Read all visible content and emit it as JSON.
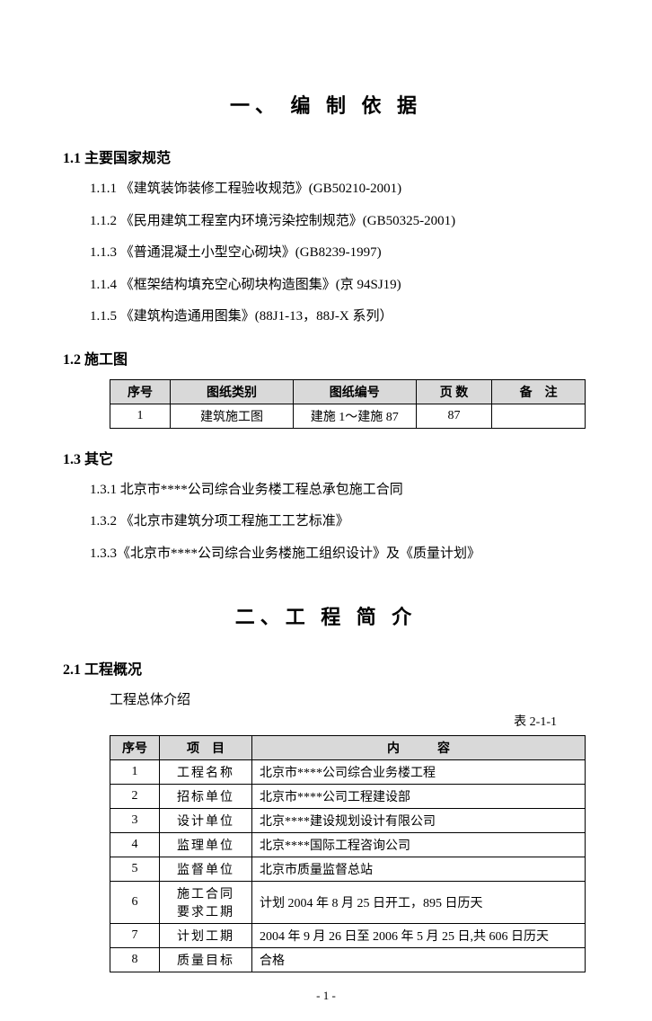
{
  "chapter1_title": "一、 编 制 依 据",
  "s11_title": "1.1 主要国家规范",
  "s11_items": [
    "1.1.1 《建筑装饰装修工程验收规范》(GB50210-2001)",
    "1.1.2 《民用建筑工程室内环境污染控制规范》(GB50325-2001)",
    "1.1.3 《普通混凝土小型空心砌块》(GB8239-1997)",
    "1.1.4 《框架结构填充空心砌块构造图集》(京 94SJ19)",
    "1.1.5 《建筑构造通用图集》(88J1-13，88J-X 系列）"
  ],
  "s12_title": "1.2 施工图",
  "t1_headers": [
    "序号",
    "图纸类别",
    "图纸编号",
    "页 数",
    "备　注"
  ],
  "t1_row": [
    "1",
    "建筑施工图",
    "建施 1～建施 87",
    "87",
    ""
  ],
  "s13_title": "1.3 其它",
  "s13_items": [
    "1.3.1  北京市****公司综合业务楼工程总承包施工合同",
    "1.3.2 《北京市建筑分项工程施工工艺标准》",
    "1.3.3《北京市****公司综合业务楼施工组织设计》及《质量计划》"
  ],
  "chapter2_title": "二、工 程 简 介",
  "s21_title": "2.1 工程概况",
  "s21_intro": "工程总体介绍",
  "t2_label": "表 2-1-1",
  "t2_headers": [
    "序号",
    "项　目",
    "内　　　容"
  ],
  "t2_rows": [
    [
      "1",
      "工程名称",
      "北京市****公司综合业务楼工程"
    ],
    [
      "2",
      "招标单位",
      "北京市****公司工程建设部"
    ],
    [
      "3",
      "设计单位",
      "北京****建设规划设计有限公司"
    ],
    [
      "4",
      "监理单位",
      "北京****国际工程咨询公司"
    ],
    [
      "5",
      "监督单位",
      "北京市质量监督总站"
    ],
    [
      "6",
      "施工合同\n要求工期",
      "计划 2004 年 8 月 25 日开工，895 日历天"
    ],
    [
      "7",
      "计划工期",
      "2004 年 9 月 26 日至 2006 年 5 月 25 日,共 606 日历天"
    ],
    [
      "8",
      "质量目标",
      "合格"
    ]
  ],
  "page_num": "- 1 -"
}
